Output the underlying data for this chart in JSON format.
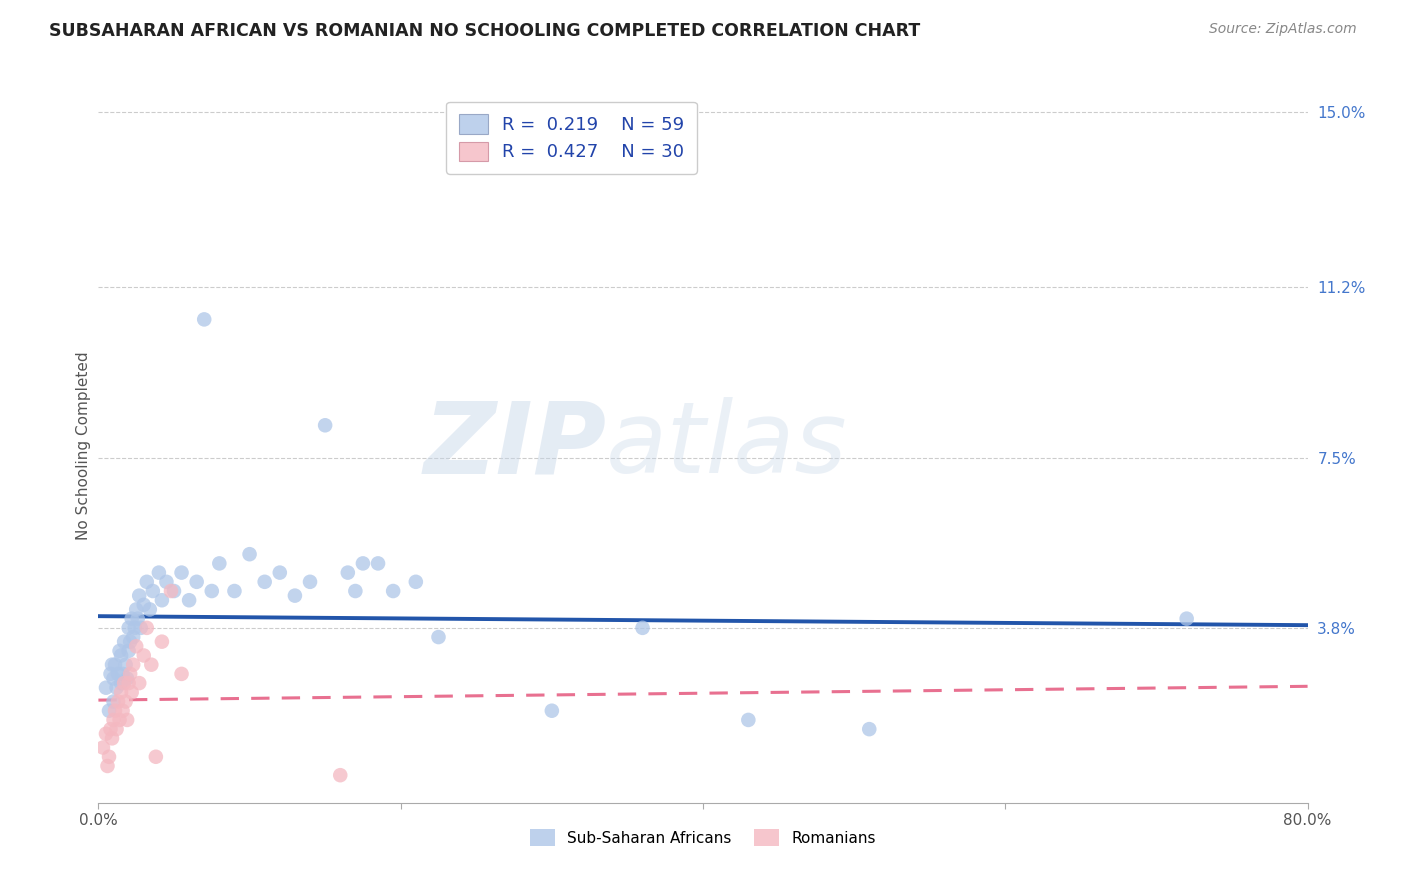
{
  "title": "SUBSAHARAN AFRICAN VS ROMANIAN NO SCHOOLING COMPLETED CORRELATION CHART",
  "source": "Source: ZipAtlas.com",
  "ylabel": "No Schooling Completed",
  "xlim": [
    0.0,
    0.8
  ],
  "ylim": [
    0.0,
    0.155
  ],
  "yticks_right": [
    0.038,
    0.075,
    0.112,
    0.15
  ],
  "ytick_right_labels": [
    "3.8%",
    "7.5%",
    "11.2%",
    "15.0%"
  ],
  "legend_r": [
    "0.219",
    "0.427"
  ],
  "legend_n": [
    "59",
    "30"
  ],
  "legend_labels": [
    "Sub-Saharan Africans",
    "Romanians"
  ],
  "blue_color": "#aec6e8",
  "pink_color": "#f4b8c1",
  "blue_line_color": "#2255aa",
  "pink_line_color": "#e87090",
  "grid_color": "#cccccc",
  "watermark_zip": "ZIP",
  "watermark_atlas": "atlas",
  "watermark_color": "#d0dff0",
  "background_color": "#ffffff",
  "blue_x": [
    0.005,
    0.007,
    0.008,
    0.009,
    0.01,
    0.01,
    0.011,
    0.012,
    0.013,
    0.014,
    0.015,
    0.015,
    0.016,
    0.017,
    0.018,
    0.019,
    0.02,
    0.02,
    0.021,
    0.022,
    0.023,
    0.024,
    0.025,
    0.026,
    0.027,
    0.028,
    0.03,
    0.032,
    0.034,
    0.036,
    0.04,
    0.042,
    0.045,
    0.05,
    0.055,
    0.06,
    0.065,
    0.07,
    0.075,
    0.08,
    0.09,
    0.1,
    0.11,
    0.12,
    0.13,
    0.14,
    0.15,
    0.165,
    0.17,
    0.175,
    0.185,
    0.195,
    0.21,
    0.225,
    0.3,
    0.36,
    0.43,
    0.51,
    0.72
  ],
  "blue_y": [
    0.025,
    0.02,
    0.028,
    0.03,
    0.022,
    0.027,
    0.03,
    0.025,
    0.028,
    0.033,
    0.026,
    0.032,
    0.028,
    0.035,
    0.03,
    0.027,
    0.033,
    0.038,
    0.035,
    0.04,
    0.036,
    0.038,
    0.042,
    0.04,
    0.045,
    0.038,
    0.043,
    0.048,
    0.042,
    0.046,
    0.05,
    0.044,
    0.048,
    0.046,
    0.05,
    0.044,
    0.048,
    0.105,
    0.046,
    0.052,
    0.046,
    0.054,
    0.048,
    0.05,
    0.045,
    0.048,
    0.082,
    0.05,
    0.046,
    0.052,
    0.052,
    0.046,
    0.048,
    0.036,
    0.02,
    0.038,
    0.018,
    0.016,
    0.04
  ],
  "pink_x": [
    0.003,
    0.005,
    0.006,
    0.007,
    0.008,
    0.009,
    0.01,
    0.011,
    0.012,
    0.013,
    0.014,
    0.015,
    0.016,
    0.017,
    0.018,
    0.019,
    0.02,
    0.021,
    0.022,
    0.023,
    0.025,
    0.027,
    0.03,
    0.032,
    0.035,
    0.038,
    0.042,
    0.048,
    0.055,
    0.16
  ],
  "pink_y": [
    0.012,
    0.015,
    0.008,
    0.01,
    0.016,
    0.014,
    0.018,
    0.02,
    0.016,
    0.022,
    0.018,
    0.024,
    0.02,
    0.026,
    0.022,
    0.018,
    0.026,
    0.028,
    0.024,
    0.03,
    0.034,
    0.026,
    0.032,
    0.038,
    0.03,
    0.01,
    0.035,
    0.046,
    0.028,
    0.006
  ]
}
